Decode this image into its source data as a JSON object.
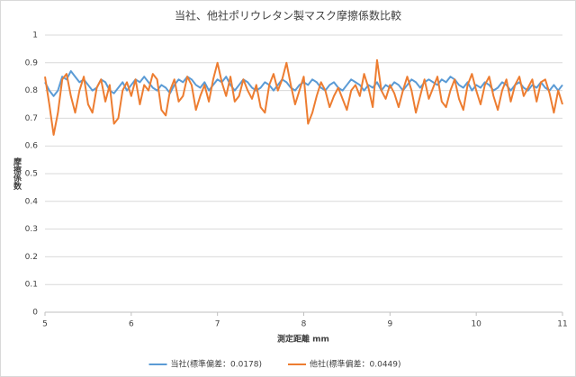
{
  "chart_data": {
    "type": "line",
    "title": "当社、他社ポリウレタン製マスク摩擦係数比較",
    "x_label": "測定距離 mm",
    "y_label": "摩擦係数",
    "x": [
      5,
      5.05,
      5.1,
      5.15,
      5.2,
      5.25,
      5.3,
      5.35,
      5.4,
      5.45,
      5.5,
      5.55,
      5.6,
      5.65,
      5.7,
      5.75,
      5.8,
      5.85,
      5.9,
      5.95,
      6,
      6.05,
      6.1,
      6.15,
      6.2,
      6.25,
      6.3,
      6.35,
      6.4,
      6.45,
      6.5,
      6.55,
      6.6,
      6.65,
      6.7,
      6.75,
      6.8,
      6.85,
      6.9,
      6.95,
      7,
      7.05,
      7.1,
      7.15,
      7.2,
      7.25,
      7.3,
      7.35,
      7.4,
      7.45,
      7.5,
      7.55,
      7.6,
      7.65,
      7.7,
      7.75,
      7.8,
      7.85,
      7.9,
      7.95,
      8,
      8.05,
      8.1,
      8.15,
      8.2,
      8.25,
      8.3,
      8.35,
      8.4,
      8.45,
      8.5,
      8.55,
      8.6,
      8.65,
      8.7,
      8.75,
      8.8,
      8.85,
      8.9,
      8.95,
      9,
      9.05,
      9.1,
      9.15,
      9.2,
      9.25,
      9.3,
      9.35,
      9.4,
      9.45,
      9.5,
      9.55,
      9.6,
      9.65,
      9.7,
      9.75,
      9.8,
      9.85,
      9.9,
      9.95,
      10,
      10.05,
      10.1,
      10.15,
      10.2,
      10.25,
      10.3,
      10.35,
      10.4,
      10.45,
      10.5,
      10.55,
      10.6,
      10.65,
      10.7,
      10.75,
      10.8,
      10.85,
      10.9,
      10.95,
      11
    ],
    "series": [
      {
        "name": "当社(標準偏差：0.0178)",
        "color": "#5b9bd5",
        "values": [
          0.83,
          0.8,
          0.78,
          0.8,
          0.85,
          0.84,
          0.87,
          0.85,
          0.83,
          0.84,
          0.82,
          0.8,
          0.81,
          0.84,
          0.83,
          0.8,
          0.79,
          0.81,
          0.83,
          0.8,
          0.82,
          0.84,
          0.83,
          0.85,
          0.83,
          0.81,
          0.8,
          0.82,
          0.81,
          0.79,
          0.82,
          0.84,
          0.83,
          0.85,
          0.84,
          0.82,
          0.81,
          0.83,
          0.8,
          0.82,
          0.84,
          0.83,
          0.85,
          0.82,
          0.8,
          0.82,
          0.84,
          0.83,
          0.81,
          0.8,
          0.81,
          0.83,
          0.82,
          0.8,
          0.82,
          0.84,
          0.83,
          0.81,
          0.8,
          0.82,
          0.83,
          0.82,
          0.84,
          0.83,
          0.81,
          0.8,
          0.82,
          0.83,
          0.81,
          0.8,
          0.82,
          0.84,
          0.83,
          0.82,
          0.8,
          0.82,
          0.81,
          0.83,
          0.8,
          0.82,
          0.81,
          0.83,
          0.82,
          0.8,
          0.82,
          0.84,
          0.83,
          0.81,
          0.83,
          0.84,
          0.83,
          0.82,
          0.84,
          0.83,
          0.85,
          0.84,
          0.82,
          0.81,
          0.83,
          0.8,
          0.82,
          0.81,
          0.83,
          0.82,
          0.8,
          0.81,
          0.83,
          0.82,
          0.8,
          0.82,
          0.83,
          0.81,
          0.8,
          0.82,
          0.81,
          0.83,
          0.81,
          0.8,
          0.82,
          0.8,
          0.82
        ]
      },
      {
        "name": "他社(標準偏差：0.0449)",
        "color": "#ed7d31",
        "values": [
          0.85,
          0.75,
          0.64,
          0.72,
          0.84,
          0.86,
          0.78,
          0.72,
          0.8,
          0.85,
          0.75,
          0.72,
          0.81,
          0.84,
          0.76,
          0.82,
          0.68,
          0.7,
          0.8,
          0.83,
          0.78,
          0.84,
          0.75,
          0.82,
          0.8,
          0.86,
          0.84,
          0.73,
          0.71,
          0.8,
          0.84,
          0.76,
          0.78,
          0.85,
          0.82,
          0.73,
          0.78,
          0.82,
          0.76,
          0.84,
          0.9,
          0.83,
          0.78,
          0.85,
          0.76,
          0.78,
          0.84,
          0.8,
          0.77,
          0.82,
          0.74,
          0.72,
          0.82,
          0.86,
          0.8,
          0.84,
          0.9,
          0.82,
          0.75,
          0.8,
          0.85,
          0.68,
          0.72,
          0.78,
          0.83,
          0.8,
          0.74,
          0.78,
          0.81,
          0.77,
          0.73,
          0.8,
          0.82,
          0.78,
          0.86,
          0.81,
          0.74,
          0.91,
          0.8,
          0.77,
          0.82,
          0.79,
          0.74,
          0.8,
          0.85,
          0.8,
          0.72,
          0.78,
          0.84,
          0.77,
          0.81,
          0.85,
          0.76,
          0.74,
          0.8,
          0.84,
          0.77,
          0.73,
          0.82,
          0.86,
          0.8,
          0.75,
          0.82,
          0.85,
          0.78,
          0.73,
          0.8,
          0.84,
          0.76,
          0.82,
          0.85,
          0.78,
          0.81,
          0.84,
          0.76,
          0.83,
          0.84,
          0.79,
          0.72,
          0.8,
          0.75
        ]
      }
    ],
    "xlim": [
      5,
      11
    ],
    "xticks": [
      5,
      6,
      7,
      8,
      9,
      10,
      11
    ],
    "ylim": [
      0,
      1
    ],
    "yticks": [
      0,
      0.1,
      0.2,
      0.3,
      0.4,
      0.5,
      0.6,
      0.7,
      0.8,
      0.9,
      1
    ],
    "grid": true,
    "legend": "bottom"
  }
}
